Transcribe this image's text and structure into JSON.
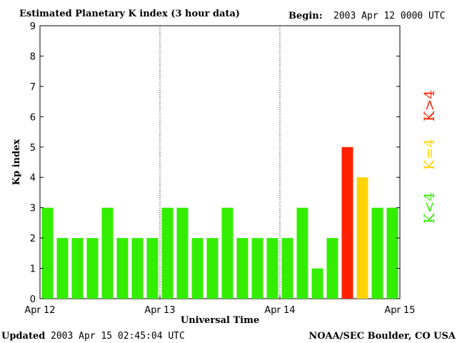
{
  "header": {
    "title": "Estimated Planetary K index (3 hour data)",
    "begin_label": "Begin:",
    "begin_value": "2003 Apr 12 0000 UTC"
  },
  "footer": {
    "updated_label": "Updated",
    "updated_value": "2003 Apr 15 02:45:04 UTC",
    "credit": "NOAA/SEC Boulder, CO USA"
  },
  "legend": {
    "items": [
      {
        "label": "K<4",
        "color": "#33ee00"
      },
      {
        "label": "K=4",
        "color": "#ffd400"
      },
      {
        "label": "K>4",
        "color": "#ff2200"
      }
    ]
  },
  "chart_data": {
    "type": "bar",
    "title": "Estimated Planetary K index (3 hour data)",
    "xlabel": "Universal Time",
    "ylabel": "Kp index",
    "ylim": [
      0,
      9
    ],
    "yticks": [
      0,
      1,
      2,
      3,
      4,
      5,
      6,
      7,
      8,
      9
    ],
    "xticks": [
      "Apr 12",
      "Apr 13",
      "Apr 14",
      "Apr 15"
    ],
    "day_separators": true,
    "values": [
      3,
      2,
      2,
      2,
      3,
      2,
      2,
      2,
      3,
      3,
      2,
      2,
      3,
      2,
      2,
      2,
      2,
      3,
      1,
      2,
      5,
      4,
      3,
      3
    ],
    "colors": {
      "low": "#33ee00",
      "equal": "#ffd400",
      "high": "#ff2200"
    }
  }
}
